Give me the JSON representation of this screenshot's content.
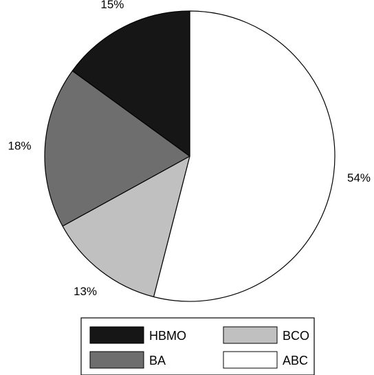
{
  "chart_data": {
    "type": "pie",
    "slices": [
      {
        "label": "ABC",
        "value": 54,
        "value_label": "54%",
        "color": "#ffffff"
      },
      {
        "label": "BCO",
        "value": 13,
        "value_label": "13%",
        "color": "#bfc0bf"
      },
      {
        "label": "BA",
        "value": 18,
        "value_label": "18%",
        "color": "#6e6e6e"
      },
      {
        "label": "HBMO",
        "value": 15,
        "value_label": "15%",
        "color": "#161616"
      }
    ],
    "start": "12 o'clock",
    "direction": "clockwise",
    "legend": {
      "placement": "bottom",
      "entries": [
        {
          "label": "HBMO",
          "color": "#161616"
        },
        {
          "label": "BCO",
          "color": "#bfc0bf"
        },
        {
          "label": "BA",
          "color": "#6e6e6e"
        },
        {
          "label": "ABC",
          "color": "#ffffff"
        }
      ]
    }
  }
}
